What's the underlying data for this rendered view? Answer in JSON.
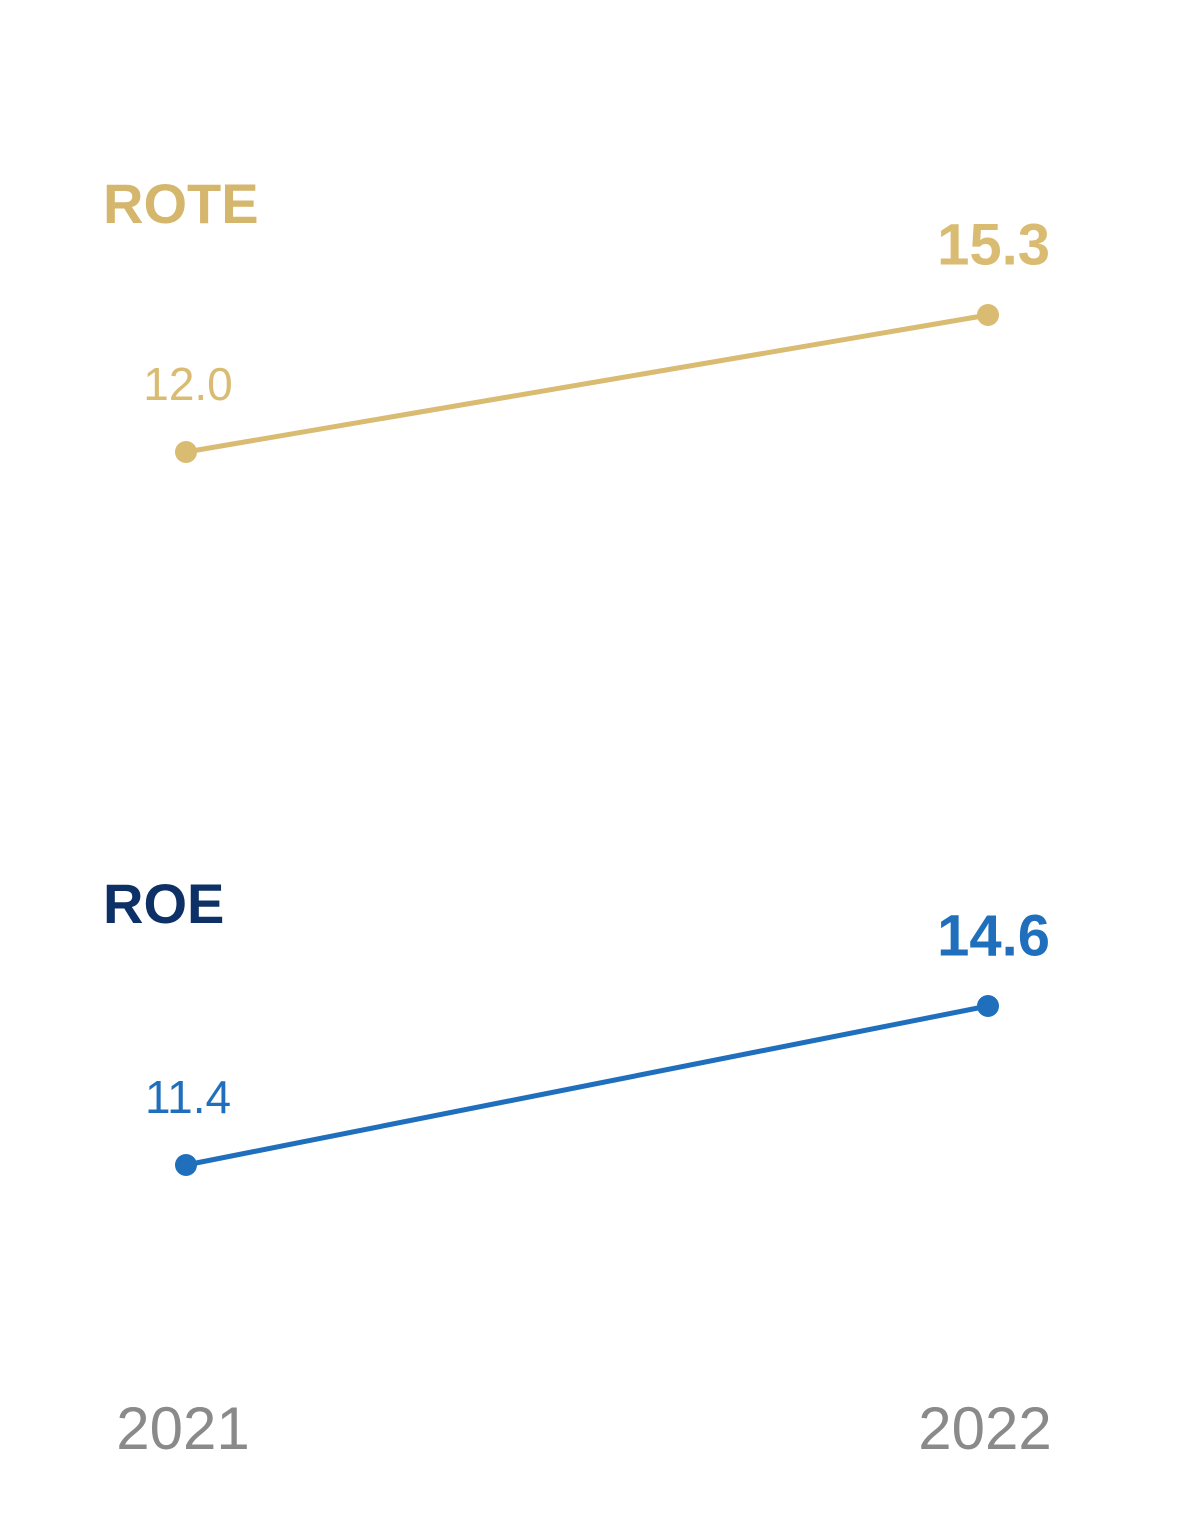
{
  "chart_data": {
    "type": "line",
    "categories": [
      "2021",
      "2022"
    ],
    "series": [
      {
        "name": "ROTE",
        "color": "#d9bb72",
        "title_color": "#d4b66c",
        "values": [
          12.0,
          15.3
        ],
        "value_labels": [
          "12.0",
          "15.3"
        ]
      },
      {
        "name": "ROE",
        "color": "#1f6fbc",
        "title_color": "#0d3166",
        "values": [
          11.4,
          14.6
        ],
        "value_labels": [
          "11.4",
          "14.6"
        ]
      }
    ]
  }
}
